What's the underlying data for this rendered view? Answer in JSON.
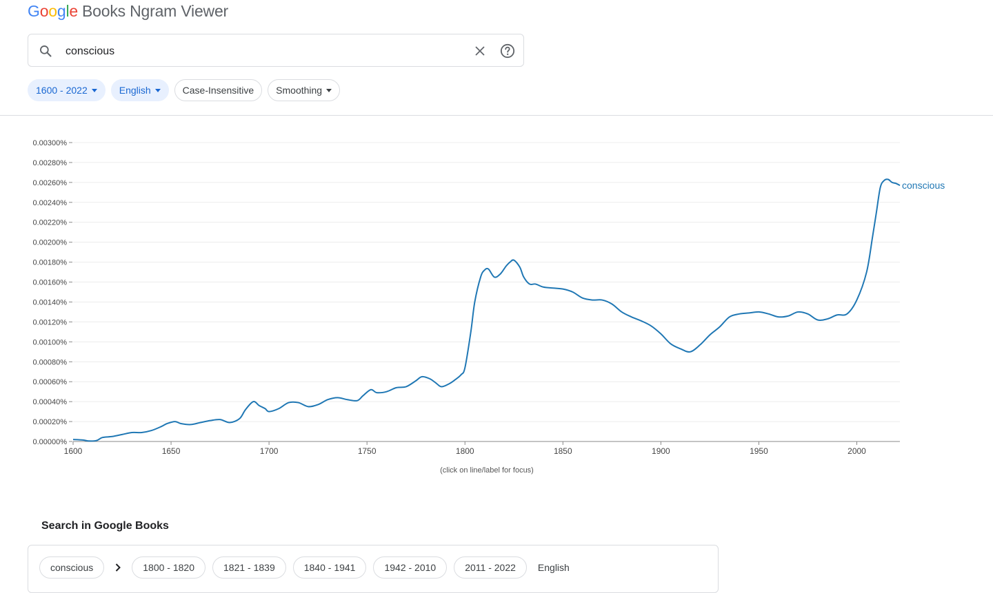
{
  "logo": {
    "letters": [
      {
        "ch": "G",
        "color": "#4285F4"
      },
      {
        "ch": "o",
        "color": "#EA4335"
      },
      {
        "ch": "o",
        "color": "#FBBC05"
      },
      {
        "ch": "g",
        "color": "#4285F4"
      },
      {
        "ch": "l",
        "color": "#34A853"
      },
      {
        "ch": "e",
        "color": "#EA4335"
      }
    ],
    "product": "Books Ngram Viewer"
  },
  "search": {
    "value": "conscious",
    "icons": [
      "search-icon",
      "clear-icon",
      "help-icon"
    ]
  },
  "filters": {
    "years": "1600 - 2022",
    "language": "English",
    "case": "Case-Insensitive",
    "smoothing": "Smoothing"
  },
  "chart_data": {
    "type": "line",
    "title": "",
    "xlabel": "",
    "ylabel": "",
    "xlim": [
      1600,
      2022
    ],
    "ylim": [
      0,
      0.003
    ],
    "grid": true,
    "y_ticks": [
      "0.00000%",
      "0.00020%",
      "0.00040%",
      "0.00060%",
      "0.00080%",
      "0.00100%",
      "0.00120%",
      "0.00140%",
      "0.00160%",
      "0.00180%",
      "0.00200%",
      "0.00220%",
      "0.00240%",
      "0.00260%",
      "0.00280%",
      "0.00300%"
    ],
    "x_ticks": [
      "1600",
      "1650",
      "1700",
      "1750",
      "1800",
      "1850",
      "1900",
      "1950",
      "2000"
    ],
    "series": [
      {
        "name": "conscious",
        "color": "#1f77b4",
        "x": [
          1600,
          1605,
          1608,
          1612,
          1615,
          1620,
          1625,
          1630,
          1635,
          1640,
          1645,
          1648,
          1652,
          1655,
          1660,
          1665,
          1670,
          1675,
          1680,
          1685,
          1688,
          1692,
          1695,
          1698,
          1700,
          1705,
          1710,
          1715,
          1720,
          1725,
          1730,
          1735,
          1740,
          1745,
          1748,
          1752,
          1755,
          1760,
          1765,
          1770,
          1775,
          1778,
          1782,
          1785,
          1788,
          1792,
          1795,
          1798,
          1800,
          1803,
          1805,
          1808,
          1810,
          1812,
          1815,
          1818,
          1821,
          1823,
          1825,
          1828,
          1830,
          1833,
          1836,
          1840,
          1845,
          1850,
          1855,
          1860,
          1865,
          1870,
          1875,
          1880,
          1885,
          1890,
          1895,
          1900,
          1905,
          1910,
          1915,
          1920,
          1925,
          1930,
          1935,
          1940,
          1945,
          1950,
          1955,
          1960,
          1965,
          1970,
          1975,
          1980,
          1985,
          1990,
          1995,
          2000,
          2005,
          2008,
          2010,
          2012,
          2014,
          2016,
          2018,
          2020,
          2022
        ],
        "values": [
          2e-05,
          1.5e-05,
          5e-06,
          1e-05,
          4e-05,
          5e-05,
          7e-05,
          9e-05,
          9e-05,
          0.00011,
          0.00015,
          0.00018,
          0.0002,
          0.00018,
          0.00017,
          0.00019,
          0.00021,
          0.00022,
          0.00019,
          0.00023,
          0.00032,
          0.0004,
          0.00036,
          0.00033,
          0.0003,
          0.00033,
          0.00039,
          0.00039,
          0.00035,
          0.00037,
          0.00042,
          0.00044,
          0.00042,
          0.00041,
          0.00046,
          0.00052,
          0.00049,
          0.0005,
          0.00054,
          0.00055,
          0.00061,
          0.00065,
          0.00063,
          0.00059,
          0.00055,
          0.00058,
          0.00062,
          0.00067,
          0.00074,
          0.0011,
          0.0014,
          0.00165,
          0.00172,
          0.00173,
          0.00165,
          0.00168,
          0.00176,
          0.0018,
          0.00182,
          0.00175,
          0.00165,
          0.00158,
          0.00158,
          0.00155,
          0.00154,
          0.00153,
          0.0015,
          0.00144,
          0.00142,
          0.00142,
          0.00138,
          0.0013,
          0.00125,
          0.00121,
          0.00116,
          0.00108,
          0.00098,
          0.00093,
          0.0009,
          0.00097,
          0.00107,
          0.00115,
          0.00125,
          0.00128,
          0.00129,
          0.0013,
          0.00128,
          0.00125,
          0.00126,
          0.0013,
          0.00128,
          0.00122,
          0.00123,
          0.00127,
          0.00128,
          0.00142,
          0.0017,
          0.00205,
          0.0023,
          0.00255,
          0.00262,
          0.00263,
          0.0026,
          0.00259,
          0.00257
        ]
      }
    ],
    "note": "(click on line/label for focus)"
  },
  "books": {
    "title": "Search in Google Books",
    "term": "conscious",
    "ranges": [
      "1800 - 1820",
      "1821 - 1839",
      "1840 - 1941",
      "1942 - 2010",
      "2011 - 2022"
    ],
    "language": "English"
  }
}
